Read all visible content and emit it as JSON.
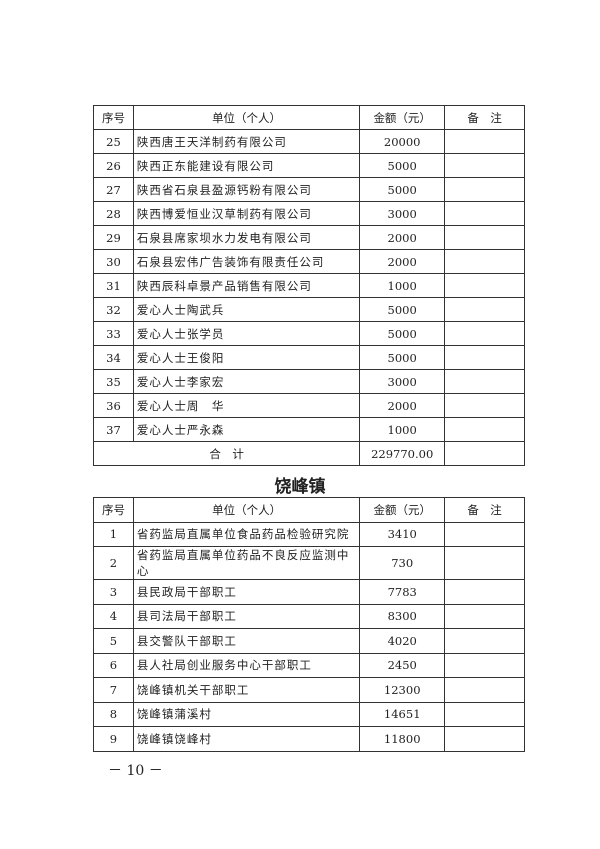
{
  "header": {
    "no": "序号",
    "unit": "单位（个人）",
    "amount": "金额（元）",
    "note": "备　注"
  },
  "table1": {
    "rows": [
      {
        "no": "25",
        "unit": "陕西唐王天洋制药有限公司",
        "amount": "20000"
      },
      {
        "no": "26",
        "unit": "陕西正东能建设有限公司",
        "amount": "5000"
      },
      {
        "no": "27",
        "unit": "陕西省石泉县盈源钙粉有限公司",
        "amount": "5000"
      },
      {
        "no": "28",
        "unit": "陕西博爱恒业汉草制药有限公司",
        "amount": "3000"
      },
      {
        "no": "29",
        "unit": "石泉县席家坝水力发电有限公司",
        "amount": "2000"
      },
      {
        "no": "30",
        "unit": "石泉县宏伟广告装饰有限责任公司",
        "amount": "2000"
      },
      {
        "no": "31",
        "unit": "陕西辰科卓景产品销售有限公司",
        "amount": "1000"
      },
      {
        "no": "32",
        "unit": "爱心人士陶武兵",
        "amount": "5000"
      },
      {
        "no": "33",
        "unit": "爱心人士张学员",
        "amount": "5000"
      },
      {
        "no": "34",
        "unit": "爱心人士王俊阳",
        "amount": "5000"
      },
      {
        "no": "35",
        "unit": "爱心人士李家宏",
        "amount": "3000"
      },
      {
        "no": "36",
        "unit": "爱心人士周　华",
        "amount": "2000"
      },
      {
        "no": "37",
        "unit": "爱心人士严永森",
        "amount": "1000"
      }
    ],
    "total_label": "合　计",
    "total_amount": "229770.00"
  },
  "section_title": "饶峰镇",
  "table2": {
    "rows": [
      {
        "no": "1",
        "unit": "省药监局直属单位食品药品检验研究院",
        "amount": "3410"
      },
      {
        "no": "2",
        "unit": "省药监局直属单位药品不良反应监测中心",
        "amount": "730"
      },
      {
        "no": "3",
        "unit": "县民政局干部职工",
        "amount": "7783"
      },
      {
        "no": "4",
        "unit": "县司法局干部职工",
        "amount": "8300"
      },
      {
        "no": "5",
        "unit": "县交警队干部职工",
        "amount": "4020"
      },
      {
        "no": "6",
        "unit": "县人社局创业服务中心干部职工",
        "amount": "2450"
      },
      {
        "no": "7",
        "unit": "饶峰镇机关干部职工",
        "amount": "12300"
      },
      {
        "no": "8",
        "unit": "饶峰镇蒲溪村",
        "amount": "14651"
      },
      {
        "no": "9",
        "unit": "饶峰镇饶峰村",
        "amount": "11800"
      }
    ]
  },
  "page_number": "－ 10 －"
}
